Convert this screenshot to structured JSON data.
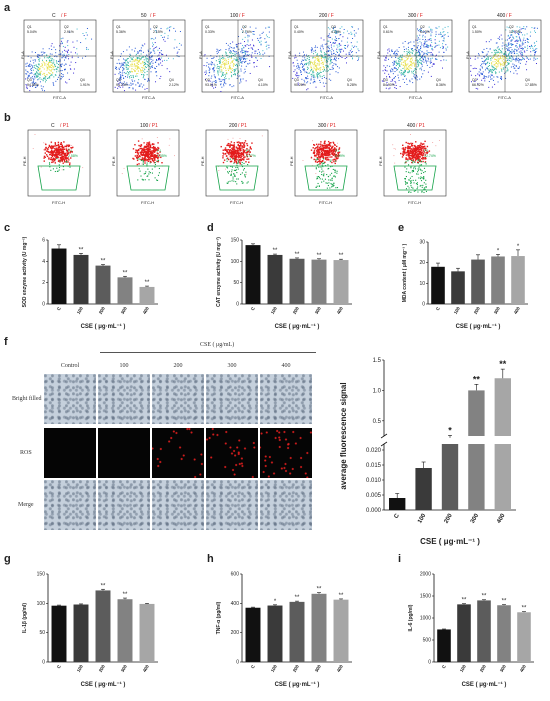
{
  "labels": [
    "a",
    "b",
    "c",
    "d",
    "e",
    "f",
    "g",
    "h",
    "i"
  ],
  "panel_a": {
    "titles": [
      "C / F",
      "50 / F",
      "100 / F",
      "200 / F",
      "300 / F",
      "400 / F"
    ],
    "xaxis": "FITC-A",
    "yaxis": "PI-A",
    "quads": [
      [
        "5.04%",
        "2.91%",
        "94.83%",
        "1.91%"
      ],
      [
        "5.36%",
        "2.15%",
        "94.23%",
        "2.12%"
      ],
      [
        "0.33%",
        "2.76%",
        "93.61%",
        "4.10%"
      ],
      [
        "0.40%",
        "4.03%",
        "90.26%",
        "5.28%"
      ],
      [
        "0.61%",
        "6.13%",
        "84.90%",
        "8.36%"
      ],
      [
        "1.50%",
        "13.70%",
        "66.92%",
        "17.85%"
      ]
    ]
  },
  "panel_b": {
    "titles": [
      "C / P1",
      "100 / P1",
      "200 / P1",
      "300 / P1",
      "400 / P1"
    ],
    "xaxis": "FITC-H",
    "yaxis": "PE-H",
    "gate_values": [
      "2.58%",
      "3.35%",
      "5.97%",
      "8.99%",
      "12.74%"
    ]
  },
  "chart_data": [
    {
      "type": "bar",
      "id": "c",
      "ylabel": "SOD enzyme activity (U mg⁻¹)",
      "xlabel": "CSE ( μg·mL⁻¹ )",
      "categories": [
        "C",
        "100",
        "200",
        "300",
        "400"
      ],
      "values": [
        5.2,
        4.6,
        3.6,
        2.5,
        1.6
      ],
      "errors": [
        0.35,
        0.15,
        0.1,
        0.1,
        0.08
      ],
      "sig": [
        "",
        "**",
        "**",
        "**",
        "**"
      ],
      "ylim": [
        0,
        6
      ],
      "yticks": [
        "0",
        "2",
        "4",
        "6"
      ]
    },
    {
      "type": "bar",
      "id": "d",
      "ylabel": "CAT enzyme activity (U mg⁻¹)",
      "xlabel": "CSE ( μg·mL⁻¹ )",
      "categories": [
        "C",
        "100",
        "200",
        "300",
        "400"
      ],
      "values": [
        138,
        115,
        106,
        104,
        103
      ],
      "errors": [
        3,
        2,
        2,
        2,
        2
      ],
      "sig": [
        "",
        "**",
        "**",
        "**",
        "**"
      ],
      "ylim": [
        0,
        150
      ],
      "yticks": [
        "0",
        "50",
        "100",
        "150"
      ]
    },
    {
      "type": "bar",
      "id": "e",
      "ylabel": "MDA content ( μM mg⁻¹ )",
      "xlabel": "CSE ( μg·mL⁻¹ )",
      "categories": [
        "C",
        "100",
        "200",
        "300",
        "400"
      ],
      "values": [
        18,
        15.8,
        21.5,
        23,
        23.2
      ],
      "errors": [
        1.8,
        1.5,
        2.3,
        1.0,
        3.0
      ],
      "sig": [
        "",
        "",
        "",
        "*",
        "*"
      ],
      "ylim": [
        0,
        30
      ],
      "yticks": [
        "0",
        "10",
        "20",
        "30"
      ]
    },
    {
      "type": "bar",
      "id": "f",
      "ylabel": "average fluorescence signal",
      "xlabel": "CSE ( μg·mL⁻¹ )",
      "categories": [
        "C",
        "100",
        "200",
        "300",
        "400"
      ],
      "values": [
        0.004,
        0.014,
        0.22,
        1.0,
        1.2
      ],
      "errors": [
        0.0015,
        0.002,
        0.04,
        0.1,
        0.15
      ],
      "sig": [
        "",
        "",
        "*",
        "**",
        "**"
      ],
      "yticks_low": [
        "0.000",
        "0.005",
        "0.010",
        "0.015",
        "0.020"
      ],
      "yticks_high": [
        "0.5",
        "1.0",
        "1.5"
      ]
    },
    {
      "type": "bar",
      "id": "g",
      "ylabel": "IL-1β (pg/ml)",
      "xlabel": "CSE ( μg·mL⁻¹ )",
      "categories": [
        "C",
        "100",
        "200",
        "300",
        "400"
      ],
      "values": [
        96,
        98,
        122,
        107,
        99
      ],
      "errors": [
        1,
        1,
        2,
        2,
        1
      ],
      "sig": [
        "",
        "",
        "**",
        "**",
        ""
      ],
      "ylim": [
        0,
        150
      ],
      "yticks": [
        "0",
        "50",
        "100",
        "150"
      ]
    },
    {
      "type": "bar",
      "id": "h",
      "ylabel": "TNF-α (pg/ml)",
      "xlabel": "CSE ( μg·mL⁻¹ )",
      "categories": [
        "C",
        "100",
        "200",
        "300",
        "400"
      ],
      "values": [
        370,
        385,
        410,
        465,
        425
      ],
      "errors": [
        4,
        5,
        5,
        8,
        5
      ],
      "sig": [
        "",
        "*",
        "**",
        "**",
        "**"
      ],
      "ylim": [
        0,
        600
      ],
      "yticks": [
        "0",
        "200",
        "400",
        "600"
      ]
    },
    {
      "type": "bar",
      "id": "i",
      "ylabel": "IL-6 (pg/ml)",
      "xlabel": "CSE ( μg·mL⁻¹ )",
      "categories": [
        "C",
        "100",
        "200",
        "300",
        "400"
      ],
      "values": [
        740,
        1310,
        1400,
        1290,
        1130
      ],
      "errors": [
        10,
        15,
        15,
        15,
        15
      ],
      "sig": [
        "",
        "**",
        "**",
        "**",
        "**"
      ],
      "ylim": [
        0,
        2000
      ],
      "yticks": [
        "0",
        "500",
        "1000",
        "1500",
        "2000"
      ]
    }
  ],
  "panel_f": {
    "header": "CSE ( μg/mL)",
    "columns": [
      "Control",
      "100",
      "200",
      "300",
      "400"
    ],
    "rows": [
      "Bright filled",
      "ROS",
      "Merge"
    ]
  },
  "colors": {
    "bars": [
      "#111111",
      "#3a3a3a",
      "#5c5c5c",
      "#828282",
      "#a6a6a6"
    ],
    "flow_gate": "#16a34a",
    "red_cluster": "#e31b1b"
  }
}
